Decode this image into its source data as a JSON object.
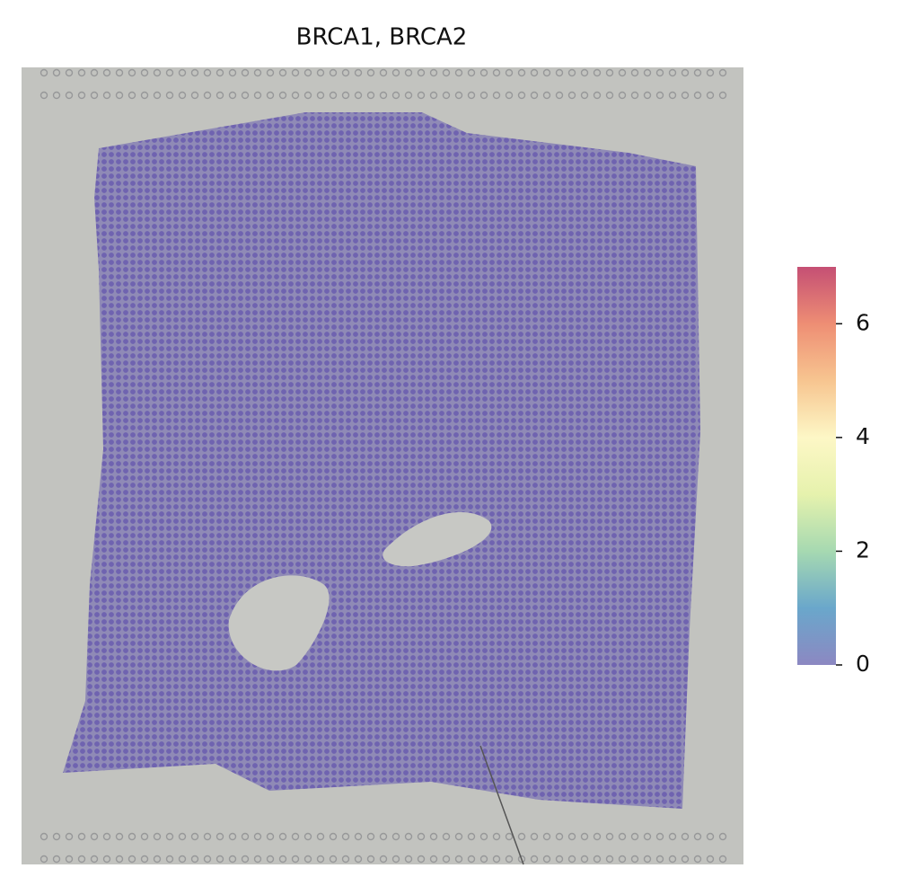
{
  "chart_data": {
    "type": "spatial",
    "title": "BRCA1, BRCA2",
    "colorbar": {
      "lim": [
        0,
        7
      ],
      "ticks": [
        0,
        2,
        4,
        6
      ],
      "colormap": [
        "#8c88c2",
        "#6aa7cb",
        "#a6d9b1",
        "#e6f2ad",
        "#fdf7c6",
        "#f7c590",
        "#ee8e74",
        "#c54f74"
      ]
    }
  }
}
